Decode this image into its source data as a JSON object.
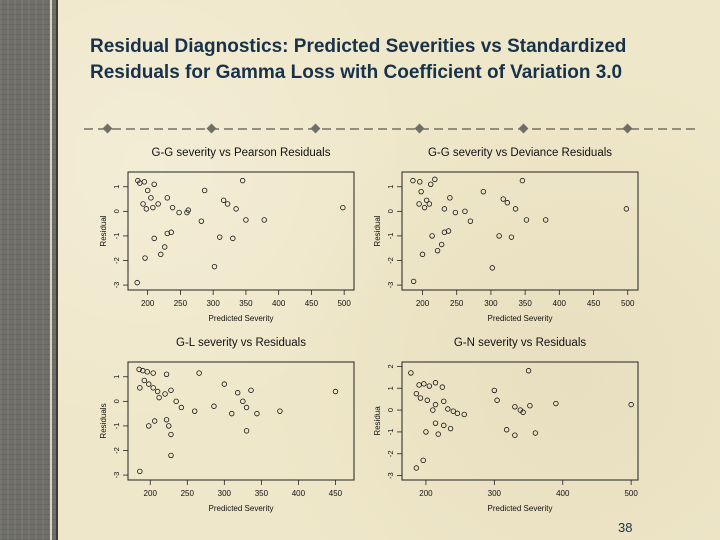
{
  "slide": {
    "title": "Residual Diagnostics: Predicted Severities vs Standardized Residuals for Gamma Loss with Coefficient of Variation 3.0",
    "page_number": "38",
    "colors": {
      "title": "#17324a",
      "background": "#efe7c9",
      "spine": "#6f6f68"
    }
  },
  "chart_data": [
    {
      "type": "scatter",
      "title": "G-G severity vs Pearson Residuals",
      "xlabel": "Predicted Severity",
      "ylabel": "Residual",
      "xlim": [
        170,
        515
      ],
      "ylim": [
        -3.2,
        1.6
      ],
      "xticks": [
        200,
        250,
        300,
        350,
        400,
        450,
        500
      ],
      "yticks": [
        -3,
        -2,
        -1,
        0,
        1
      ],
      "grid": false,
      "points": [
        {
          "x": 185,
          "y": 1.25
        },
        {
          "x": 188,
          "y": 1.15
        },
        {
          "x": 195,
          "y": 1.2
        },
        {
          "x": 210,
          "y": 1.1
        },
        {
          "x": 200,
          "y": 0.85
        },
        {
          "x": 205,
          "y": 0.55
        },
        {
          "x": 193,
          "y": 0.3
        },
        {
          "x": 198,
          "y": 0.1
        },
        {
          "x": 208,
          "y": 0.15
        },
        {
          "x": 216,
          "y": 0.3
        },
        {
          "x": 230,
          "y": 0.55
        },
        {
          "x": 238,
          "y": 0.15
        },
        {
          "x": 260,
          "y": -0.05
        },
        {
          "x": 248,
          "y": -0.05
        },
        {
          "x": 262,
          "y": 0.05
        },
        {
          "x": 282,
          "y": -0.4
        },
        {
          "x": 287,
          "y": 0.85
        },
        {
          "x": 316,
          "y": 0.45
        },
        {
          "x": 322,
          "y": 0.3
        },
        {
          "x": 335,
          "y": 0.1
        },
        {
          "x": 310,
          "y": -1.05
        },
        {
          "x": 330,
          "y": -1.1
        },
        {
          "x": 345,
          "y": 1.25
        },
        {
          "x": 350,
          "y": -0.35
        },
        {
          "x": 378,
          "y": -0.35
        },
        {
          "x": 498,
          "y": 0.15
        },
        {
          "x": 230,
          "y": -0.9
        },
        {
          "x": 236,
          "y": -0.85
        },
        {
          "x": 226,
          "y": -1.45
        },
        {
          "x": 210,
          "y": -1.1
        },
        {
          "x": 196,
          "y": -1.9
        },
        {
          "x": 220,
          "y": -1.75
        },
        {
          "x": 302,
          "y": -2.25
        },
        {
          "x": 184,
          "y": -2.9
        }
      ]
    },
    {
      "type": "scatter",
      "title": "G-G severity vs Deviance Residuals",
      "xlabel": "Predicted Severity",
      "ylabel": "Residual",
      "xlim": [
        170,
        515
      ],
      "ylim": [
        -3.2,
        1.6
      ],
      "xticks": [
        200,
        250,
        300,
        350,
        400,
        450,
        500
      ],
      "yticks": [
        -3,
        -2,
        -1,
        0,
        1
      ],
      "grid": false,
      "points": [
        {
          "x": 186,
          "y": 1.25
        },
        {
          "x": 196,
          "y": 1.2
        },
        {
          "x": 212,
          "y": 1.1
        },
        {
          "x": 218,
          "y": 1.3
        },
        {
          "x": 198,
          "y": 0.8
        },
        {
          "x": 206,
          "y": 0.45
        },
        {
          "x": 195,
          "y": 0.3
        },
        {
          "x": 203,
          "y": 0.15
        },
        {
          "x": 210,
          "y": 0.3
        },
        {
          "x": 240,
          "y": 0.55
        },
        {
          "x": 232,
          "y": 0.1
        },
        {
          "x": 262,
          "y": 0.0
        },
        {
          "x": 248,
          "y": -0.05
        },
        {
          "x": 270,
          "y": -0.4
        },
        {
          "x": 289,
          "y": 0.8
        },
        {
          "x": 318,
          "y": 0.5
        },
        {
          "x": 324,
          "y": 0.35
        },
        {
          "x": 336,
          "y": 0.1
        },
        {
          "x": 312,
          "y": -1.0
        },
        {
          "x": 330,
          "y": -1.05
        },
        {
          "x": 346,
          "y": 1.25
        },
        {
          "x": 352,
          "y": -0.35
        },
        {
          "x": 380,
          "y": -0.35
        },
        {
          "x": 498,
          "y": 0.1
        },
        {
          "x": 232,
          "y": -0.85
        },
        {
          "x": 238,
          "y": -0.8
        },
        {
          "x": 228,
          "y": -1.35
        },
        {
          "x": 214,
          "y": -1.0
        },
        {
          "x": 200,
          "y": -1.75
        },
        {
          "x": 222,
          "y": -1.6
        },
        {
          "x": 302,
          "y": -2.3
        },
        {
          "x": 187,
          "y": -2.85
        }
      ]
    },
    {
      "type": "scatter",
      "title": "G-L severity vs Residuals",
      "xlabel": "Predicted Severity",
      "ylabel": "Residuals",
      "xlim": [
        170,
        475
      ],
      "ylim": [
        -3.2,
        1.6
      ],
      "xticks": [
        200,
        250,
        300,
        350,
        400,
        450
      ],
      "yticks": [
        -3,
        -2,
        -1,
        0,
        1
      ],
      "grid": false,
      "points": [
        {
          "x": 185,
          "y": 1.3
        },
        {
          "x": 190,
          "y": 1.25
        },
        {
          "x": 196,
          "y": 1.2
        },
        {
          "x": 204,
          "y": 1.15
        },
        {
          "x": 222,
          "y": 1.1
        },
        {
          "x": 266,
          "y": 1.15
        },
        {
          "x": 192,
          "y": 0.85
        },
        {
          "x": 198,
          "y": 0.7
        },
        {
          "x": 204,
          "y": 0.55
        },
        {
          "x": 186,
          "y": 0.55
        },
        {
          "x": 210,
          "y": 0.4
        },
        {
          "x": 220,
          "y": 0.3
        },
        {
          "x": 228,
          "y": 0.45
        },
        {
          "x": 235,
          "y": 0.0
        },
        {
          "x": 212,
          "y": 0.15
        },
        {
          "x": 242,
          "y": -0.25
        },
        {
          "x": 260,
          "y": -0.4
        },
        {
          "x": 286,
          "y": -0.2
        },
        {
          "x": 318,
          "y": 0.35
        },
        {
          "x": 325,
          "y": 0.0
        },
        {
          "x": 330,
          "y": -0.25
        },
        {
          "x": 336,
          "y": 0.45
        },
        {
          "x": 300,
          "y": 0.7
        },
        {
          "x": 344,
          "y": -0.5
        },
        {
          "x": 375,
          "y": -0.4
        },
        {
          "x": 450,
          "y": 0.4
        },
        {
          "x": 222,
          "y": -0.75
        },
        {
          "x": 225,
          "y": -1.0
        },
        {
          "x": 206,
          "y": -0.8
        },
        {
          "x": 198,
          "y": -1.0
        },
        {
          "x": 228,
          "y": -1.35
        },
        {
          "x": 310,
          "y": -0.5
        },
        {
          "x": 330,
          "y": -1.2
        },
        {
          "x": 228,
          "y": -2.2
        },
        {
          "x": 186,
          "y": -2.85
        }
      ]
    },
    {
      "type": "scatter",
      "title": "G-N severity vs Residuals",
      "xlabel": "Predicted Severity",
      "ylabel": "Residua",
      "xlim": [
        165,
        510
      ],
      "ylim": [
        -3.2,
        2.2
      ],
      "xticks": [
        200,
        300,
        400,
        500
      ],
      "yticks": [
        -3,
        -2,
        -1,
        0,
        1,
        2
      ],
      "grid": false,
      "points": [
        {
          "x": 178,
          "y": 1.7
        },
        {
          "x": 190,
          "y": 1.15
        },
        {
          "x": 197,
          "y": 1.2
        },
        {
          "x": 205,
          "y": 1.1
        },
        {
          "x": 214,
          "y": 1.25
        },
        {
          "x": 224,
          "y": 1.05
        },
        {
          "x": 300,
          "y": 0.9
        },
        {
          "x": 350,
          "y": 1.8
        },
        {
          "x": 186,
          "y": 0.75
        },
        {
          "x": 192,
          "y": 0.55
        },
        {
          "x": 202,
          "y": 0.45
        },
        {
          "x": 214,
          "y": 0.25
        },
        {
          "x": 226,
          "y": 0.4
        },
        {
          "x": 232,
          "y": 0.05
        },
        {
          "x": 210,
          "y": 0.0
        },
        {
          "x": 240,
          "y": -0.05
        },
        {
          "x": 246,
          "y": -0.15
        },
        {
          "x": 256,
          "y": -0.2
        },
        {
          "x": 330,
          "y": 0.15
        },
        {
          "x": 338,
          "y": 0.0
        },
        {
          "x": 342,
          "y": -0.1
        },
        {
          "x": 352,
          "y": 0.2
        },
        {
          "x": 304,
          "y": 0.45
        },
        {
          "x": 390,
          "y": 0.3
        },
        {
          "x": 500,
          "y": 0.25
        },
        {
          "x": 214,
          "y": -0.6
        },
        {
          "x": 226,
          "y": -0.7
        },
        {
          "x": 200,
          "y": -1.0
        },
        {
          "x": 218,
          "y": -1.1
        },
        {
          "x": 236,
          "y": -0.85
        },
        {
          "x": 330,
          "y": -1.15
        },
        {
          "x": 318,
          "y": -0.9
        },
        {
          "x": 360,
          "y": -1.05
        },
        {
          "x": 196,
          "y": -2.3
        },
        {
          "x": 186,
          "y": -2.65
        }
      ]
    }
  ]
}
